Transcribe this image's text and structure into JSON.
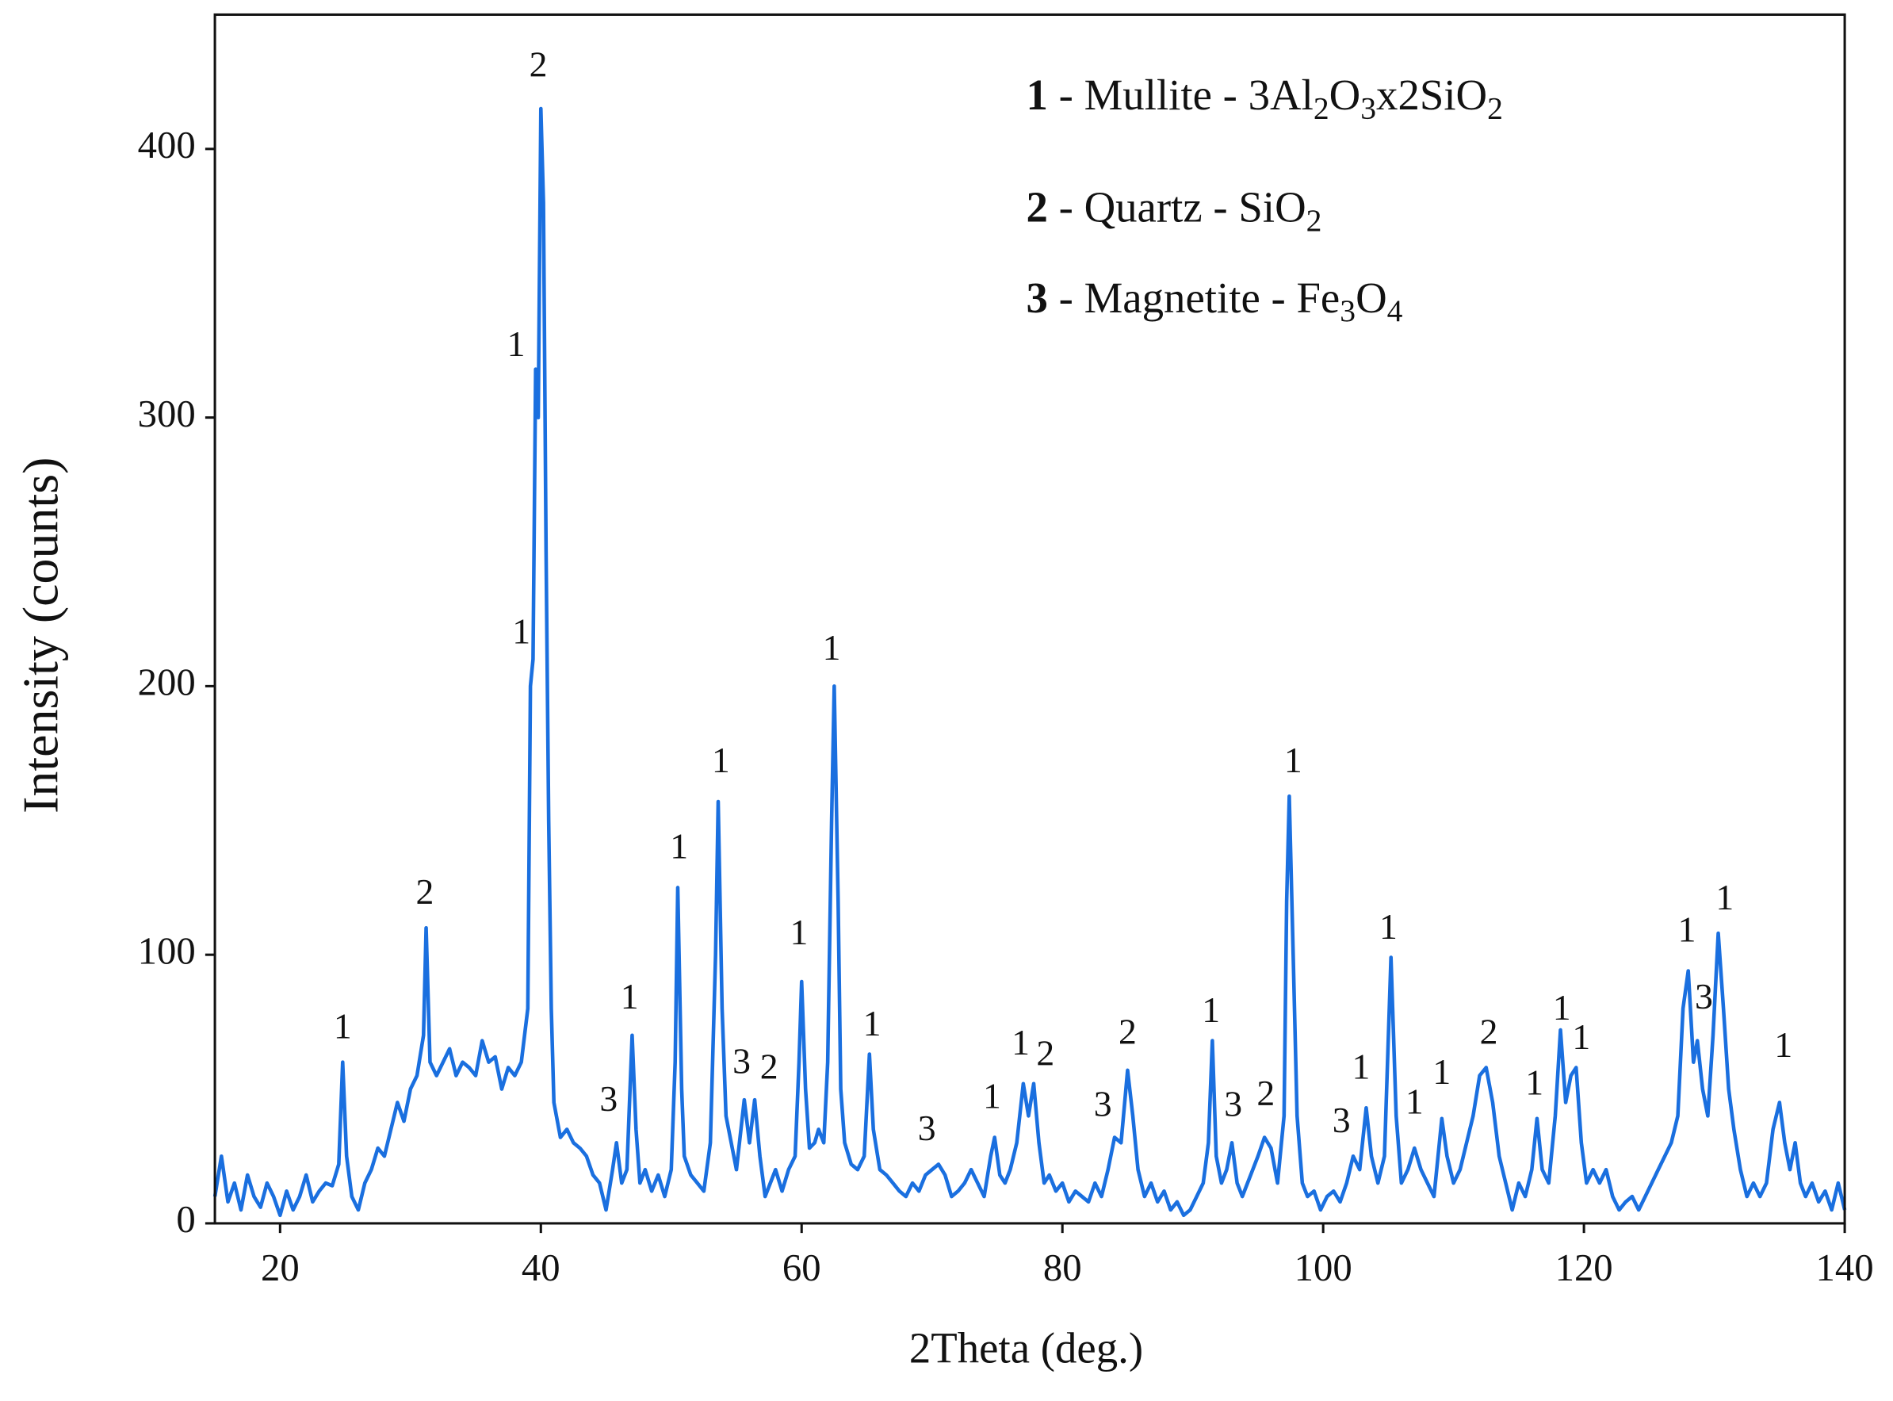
{
  "chart_data": {
    "type": "line",
    "xlabel": "2Theta (deg.)",
    "ylabel": "Intensity (counts)",
    "color": "#1a6fdf",
    "xlim": [
      15,
      140
    ],
    "ylim": [
      0,
      450
    ],
    "xticks": [
      20,
      40,
      60,
      80,
      100,
      120,
      140
    ],
    "yticks": [
      0,
      100,
      200,
      300,
      400
    ],
    "x": [
      15,
      15.5,
      16,
      16.5,
      17,
      17.5,
      18,
      18.5,
      19,
      19.5,
      20,
      20.5,
      21,
      21.5,
      22,
      22.5,
      23,
      23.5,
      24,
      24.5,
      24.8,
      25.1,
      25.5,
      26,
      26.5,
      27,
      27.5,
      28,
      28.5,
      29,
      29.5,
      30,
      30.5,
      31,
      31.2,
      31.5,
      32,
      32.5,
      33,
      33.5,
      34,
      34.5,
      35,
      35.5,
      36,
      36.5,
      37,
      37.5,
      38,
      38.5,
      39,
      39.2,
      39.4,
      39.6,
      39.8,
      40,
      40.2,
      40.4,
      40.6,
      40.8,
      41,
      41.5,
      42,
      42.5,
      43,
      43.5,
      44,
      44.5,
      45,
      45.5,
      45.8,
      46.2,
      46.6,
      47,
      47.3,
      47.6,
      48,
      48.5,
      49,
      49.5,
      50,
      50.3,
      50.5,
      50.8,
      51,
      51.5,
      52,
      52.5,
      53,
      53.4,
      53.6,
      53.9,
      54.2,
      54.6,
      55,
      55.6,
      56,
      56.4,
      56.8,
      57.2,
      57.6,
      58,
      58.5,
      59,
      59.5,
      59.8,
      60,
      60.3,
      60.6,
      61,
      61.3,
      61.7,
      62,
      62.3,
      62.5,
      62.8,
      63,
      63.3,
      63.8,
      64.3,
      64.8,
      65.2,
      65.5,
      66,
      66.5,
      67,
      67.5,
      68,
      68.5,
      69,
      69.5,
      70,
      70.5,
      71,
      71.5,
      72,
      72.5,
      73,
      73.5,
      74,
      74.5,
      74.8,
      75.2,
      75.6,
      76,
      76.5,
      77,
      77.4,
      77.8,
      78.2,
      78.6,
      79,
      79.5,
      80,
      80.5,
      81,
      81.5,
      82,
      82.5,
      83,
      83.5,
      84,
      84.5,
      85,
      85.4,
      85.8,
      86.3,
      86.8,
      87.3,
      87.8,
      88.3,
      88.8,
      89.3,
      89.8,
      90.3,
      90.8,
      91.2,
      91.5,
      91.8,
      92.2,
      92.6,
      93,
      93.4,
      93.8,
      94.2,
      94.6,
      95,
      95.5,
      96,
      96.5,
      97,
      97.2,
      97.4,
      97.7,
      98,
      98.4,
      98.8,
      99.3,
      99.8,
      100.3,
      100.8,
      101.3,
      101.8,
      102.3,
      102.8,
      103.3,
      103.7,
      104.2,
      104.7,
      105.2,
      105.6,
      106,
      106.5,
      107,
      107.5,
      108,
      108.5,
      109.1,
      109.5,
      110,
      110.5,
      111,
      111.5,
      112,
      112.5,
      113,
      113.5,
      114,
      114.5,
      115,
      115.5,
      116,
      116.4,
      116.8,
      117.3,
      117.8,
      118.2,
      118.6,
      119,
      119.4,
      119.8,
      120.2,
      120.7,
      121.2,
      121.7,
      122.2,
      122.7,
      123.2,
      123.7,
      124.2,
      124.7,
      125.2,
      125.7,
      126.2,
      126.7,
      127.2,
      127.6,
      128,
      128.4,
      128.7,
      129.1,
      129.5,
      129.9,
      130.3,
      130.7,
      131.1,
      131.5,
      132,
      132.5,
      133,
      133.5,
      134,
      134.5,
      135,
      135.4,
      135.8,
      136.2,
      136.6,
      137,
      137.5,
      138,
      138.5,
      139,
      139.5,
      140
    ],
    "values": [
      10,
      25,
      8,
      15,
      5,
      18,
      10,
      6,
      15,
      10,
      3,
      12,
      5,
      10,
      18,
      8,
      12,
      15,
      14,
      22,
      60,
      25,
      10,
      5,
      15,
      20,
      28,
      25,
      35,
      45,
      38,
      50,
      55,
      70,
      110,
      60,
      55,
      60,
      65,
      55,
      60,
      58,
      55,
      68,
      60,
      62,
      50,
      58,
      55,
      60,
      80,
      200,
      210,
      318,
      300,
      415,
      380,
      250,
      150,
      80,
      45,
      32,
      35,
      30,
      28,
      25,
      18,
      15,
      5,
      20,
      30,
      15,
      20,
      70,
      35,
      15,
      20,
      12,
      18,
      10,
      20,
      60,
      125,
      50,
      25,
      18,
      15,
      12,
      30,
      100,
      157,
      80,
      40,
      30,
      20,
      46,
      30,
      46,
      25,
      10,
      15,
      20,
      12,
      20,
      25,
      60,
      90,
      50,
      28,
      30,
      35,
      30,
      60,
      150,
      200,
      120,
      50,
      30,
      22,
      20,
      25,
      63,
      35,
      20,
      18,
      15,
      12,
      10,
      15,
      12,
      18,
      20,
      22,
      18,
      10,
      12,
      15,
      20,
      15,
      10,
      25,
      32,
      18,
      15,
      20,
      30,
      52,
      40,
      52,
      30,
      15,
      18,
      12,
      15,
      8,
      12,
      10,
      8,
      15,
      10,
      20,
      32,
      30,
      57,
      40,
      20,
      10,
      15,
      8,
      12,
      5,
      8,
      3,
      5,
      10,
      15,
      30,
      68,
      25,
      15,
      20,
      30,
      15,
      10,
      15,
      20,
      25,
      32,
      28,
      15,
      40,
      120,
      159,
      100,
      40,
      15,
      10,
      12,
      5,
      10,
      12,
      8,
      15,
      25,
      20,
      43,
      25,
      15,
      25,
      99,
      40,
      15,
      20,
      28,
      20,
      15,
      10,
      39,
      25,
      15,
      20,
      30,
      40,
      55,
      58,
      45,
      25,
      15,
      5,
      15,
      10,
      20,
      39,
      20,
      15,
      40,
      72,
      45,
      55,
      58,
      30,
      15,
      20,
      15,
      20,
      10,
      5,
      8,
      10,
      5,
      10,
      15,
      20,
      25,
      30,
      40,
      80,
      94,
      60,
      68,
      50,
      40,
      70,
      108,
      80,
      50,
      35,
      20,
      10,
      15,
      10,
      15,
      35,
      45,
      30,
      20,
      30,
      15,
      10,
      15,
      8,
      12,
      5,
      15,
      5
    ],
    "annotations": [
      {
        "text": "1",
        "x": 24.8,
        "y": 72
      },
      {
        "text": "2",
        "x": 31.1,
        "y": 122
      },
      {
        "text": "2",
        "x": 39.8,
        "y": 430
      },
      {
        "text": "1",
        "x": 38.1,
        "y": 326
      },
      {
        "text": "1",
        "x": 38.5,
        "y": 219
      },
      {
        "text": "3",
        "x": 45.2,
        "y": 45
      },
      {
        "text": "1",
        "x": 46.8,
        "y": 83
      },
      {
        "text": "1",
        "x": 50.6,
        "y": 139
      },
      {
        "text": "1",
        "x": 53.8,
        "y": 171
      },
      {
        "text": "3",
        "x": 55.4,
        "y": 59
      },
      {
        "text": "2",
        "x": 57.5,
        "y": 57
      },
      {
        "text": "1",
        "x": 59.8,
        "y": 107
      },
      {
        "text": "1",
        "x": 62.3,
        "y": 213
      },
      {
        "text": "1",
        "x": 65.4,
        "y": 73
      },
      {
        "text": "3",
        "x": 69.6,
        "y": 34
      },
      {
        "text": "1",
        "x": 74.6,
        "y": 46
      },
      {
        "text": "1",
        "x": 76.8,
        "y": 66
      },
      {
        "text": "2",
        "x": 78.7,
        "y": 62
      },
      {
        "text": "3",
        "x": 83.1,
        "y": 43
      },
      {
        "text": "2",
        "x": 85.0,
        "y": 70
      },
      {
        "text": "1",
        "x": 91.4,
        "y": 78
      },
      {
        "text": "3",
        "x": 93.1,
        "y": 43
      },
      {
        "text": "2",
        "x": 95.6,
        "y": 47
      },
      {
        "text": "1",
        "x": 97.7,
        "y": 171
      },
      {
        "text": "3",
        "x": 101.4,
        "y": 37
      },
      {
        "text": "1",
        "x": 102.9,
        "y": 57
      },
      {
        "text": "1",
        "x": 105.0,
        "y": 109
      },
      {
        "text": "1",
        "x": 107.0,
        "y": 44
      },
      {
        "text": "1",
        "x": 109.1,
        "y": 55
      },
      {
        "text": "2",
        "x": 112.7,
        "y": 70
      },
      {
        "text": "1",
        "x": 116.2,
        "y": 51
      },
      {
        "text": "1",
        "x": 118.3,
        "y": 79
      },
      {
        "text": "1",
        "x": 119.8,
        "y": 68
      },
      {
        "text": "1",
        "x": 127.9,
        "y": 108
      },
      {
        "text": "3",
        "x": 129.2,
        "y": 83
      },
      {
        "text": "1",
        "x": 130.8,
        "y": 120
      },
      {
        "text": "1",
        "x": 135.3,
        "y": 65
      }
    ],
    "legend_items": [
      {
        "key": "1",
        "text": " - Mullite - ",
        "formula": [
          "3Al",
          "2",
          "O",
          "3",
          "x2SiO",
          "2"
        ]
      },
      {
        "key": "2",
        "text": " - Quartz - ",
        "formula": [
          "SiO",
          "2"
        ]
      },
      {
        "key": "3",
        "text": " - Magnetite - ",
        "formula": [
          "Fe",
          "3",
          "O",
          "4"
        ]
      }
    ]
  }
}
